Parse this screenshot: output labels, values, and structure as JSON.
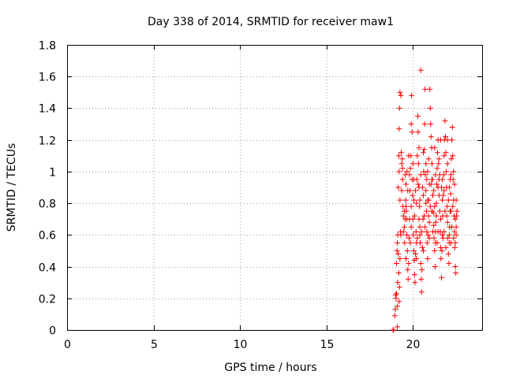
{
  "chart_data": {
    "type": "scatter",
    "title": "Day 338 of 2014, SRMTID for receiver maw1",
    "xlabel": "GPS time / hours",
    "ylabel": "SRMTID / TECUs",
    "xlim": [
      0,
      24
    ],
    "ylim": [
      0,
      1.8
    ],
    "x_ticks": [
      0,
      5,
      10,
      15,
      20
    ],
    "x_tick_labels": [
      "0",
      "5",
      "10",
      "15",
      "20"
    ],
    "y_ticks": [
      0,
      0.2,
      0.4,
      0.6,
      0.8,
      1.0,
      1.2,
      1.4,
      1.6,
      1.8
    ],
    "y_tick_labels": [
      "0",
      "0.2",
      "0.4",
      "0.6",
      "0.8",
      "1",
      "1.2",
      "1.4",
      "1.6",
      "1.8"
    ],
    "grid": true,
    "marker": "plus",
    "color": "#ff0000",
    "series": [
      {
        "name": "maw1",
        "points": [
          [
            18.85,
            0.0
          ],
          [
            18.88,
            0.0
          ],
          [
            18.95,
            0.09
          ],
          [
            18.98,
            0.13
          ],
          [
            19.0,
            0.22
          ],
          [
            19.02,
            0.2
          ],
          [
            19.05,
            0.23
          ],
          [
            19.1,
            0.02
          ],
          [
            19.1,
            0.15
          ],
          [
            19.12,
            0.3
          ],
          [
            19.05,
            0.42
          ],
          [
            19.08,
            0.5
          ],
          [
            19.1,
            0.55
          ],
          [
            19.12,
            0.6
          ],
          [
            19.15,
            0.48
          ],
          [
            19.18,
            0.36
          ],
          [
            19.2,
            0.18
          ],
          [
            19.22,
            0.27
          ],
          [
            19.25,
            0.45
          ],
          [
            19.28,
            0.62
          ],
          [
            19.15,
            0.9
          ],
          [
            19.18,
            1.1
          ],
          [
            19.2,
            1.27
          ],
          [
            19.22,
            1.4
          ],
          [
            19.25,
            1.5
          ],
          [
            19.3,
            1.48
          ],
          [
            19.32,
            1.12
          ],
          [
            19.35,
            1.05
          ],
          [
            19.38,
            1.08
          ],
          [
            19.4,
            0.95
          ],
          [
            19.42,
            0.78
          ],
          [
            19.45,
            0.72
          ],
          [
            19.5,
            0.65
          ],
          [
            19.52,
            0.55
          ],
          [
            19.55,
            0.7
          ],
          [
            19.58,
            0.82
          ],
          [
            19.6,
            0.92
          ],
          [
            19.62,
            0.75
          ],
          [
            19.65,
            0.6
          ],
          [
            19.68,
            0.5
          ],
          [
            19.7,
            0.38
          ],
          [
            19.72,
            0.32
          ],
          [
            19.75,
            0.42
          ],
          [
            19.78,
            0.58
          ],
          [
            19.8,
            0.7
          ],
          [
            19.82,
            0.88
          ],
          [
            19.85,
            1.02
          ],
          [
            19.88,
            1.1
          ],
          [
            19.9,
            1.3
          ],
          [
            19.92,
            1.48
          ],
          [
            19.95,
            0.95
          ],
          [
            19.98,
            0.85
          ],
          [
            20.0,
            0.7
          ],
          [
            20.02,
            0.6
          ],
          [
            20.05,
            0.5
          ],
          [
            20.08,
            0.44
          ],
          [
            20.1,
            0.35
          ],
          [
            20.12,
            0.3
          ],
          [
            20.15,
            0.48
          ],
          [
            20.18,
            0.62
          ],
          [
            20.2,
            0.8
          ],
          [
            20.22,
            0.95
          ],
          [
            20.25,
            1.1
          ],
          [
            20.28,
            1.35
          ],
          [
            20.3,
            1.25
          ],
          [
            20.32,
            1.05
          ],
          [
            20.35,
            0.9
          ],
          [
            20.38,
            0.78
          ],
          [
            20.4,
            0.65
          ],
          [
            20.42,
            0.55
          ],
          [
            20.45,
            0.42
          ],
          [
            20.48,
            0.32
          ],
          [
            20.5,
            0.24
          ],
          [
            20.52,
            0.38
          ],
          [
            20.55,
            0.52
          ],
          [
            20.58,
            0.7
          ],
          [
            20.6,
            0.85
          ],
          [
            20.62,
            1.0
          ],
          [
            20.65,
            1.14
          ],
          [
            20.68,
            1.3
          ],
          [
            20.45,
            1.64
          ],
          [
            20.7,
            1.52
          ],
          [
            20.72,
            0.98
          ],
          [
            20.75,
            0.88
          ],
          [
            20.78,
            0.75
          ],
          [
            20.8,
            0.62
          ],
          [
            20.82,
            0.55
          ],
          [
            20.85,
            0.45
          ],
          [
            20.88,
            0.6
          ],
          [
            20.9,
            0.72
          ],
          [
            20.92,
            0.82
          ],
          [
            20.95,
            0.92
          ],
          [
            20.98,
            1.52
          ],
          [
            21.0,
            1.4
          ],
          [
            21.02,
            1.3
          ],
          [
            21.05,
            1.22
          ],
          [
            21.08,
            1.15
          ],
          [
            21.1,
            1.05
          ],
          [
            21.12,
            0.95
          ],
          [
            21.15,
            0.85
          ],
          [
            21.18,
            0.74
          ],
          [
            21.2,
            0.66
          ],
          [
            21.22,
            0.58
          ],
          [
            21.25,
            0.5
          ],
          [
            21.28,
            0.4
          ],
          [
            21.3,
            0.55
          ],
          [
            21.32,
            0.68
          ],
          [
            21.35,
            0.8
          ],
          [
            21.38,
            0.92
          ],
          [
            21.4,
            1.02
          ],
          [
            21.42,
            1.12
          ],
          [
            21.45,
            1.2
          ],
          [
            21.48,
            1.05
          ],
          [
            21.5,
            0.95
          ],
          [
            21.52,
            0.85
          ],
          [
            21.55,
            0.75
          ],
          [
            21.58,
            0.62
          ],
          [
            21.6,
            0.52
          ],
          [
            21.62,
            0.45
          ],
          [
            21.65,
            0.33
          ],
          [
            21.68,
            0.5
          ],
          [
            21.7,
            0.6
          ],
          [
            21.72,
            0.72
          ],
          [
            21.75,
            0.85
          ],
          [
            21.78,
            0.98
          ],
          [
            21.8,
            1.1
          ],
          [
            21.82,
            1.2
          ],
          [
            21.85,
            1.32
          ],
          [
            21.88,
            1.22
          ],
          [
            21.9,
            1.12
          ],
          [
            21.92,
            1.0
          ],
          [
            21.95,
            0.9
          ],
          [
            21.98,
            0.78
          ],
          [
            22.0,
            0.68
          ],
          [
            22.02,
            0.58
          ],
          [
            22.05,
            0.48
          ],
          [
            22.08,
            0.42
          ],
          [
            22.1,
            0.55
          ],
          [
            22.12,
            0.65
          ],
          [
            22.15,
            0.75
          ],
          [
            22.18,
            0.86
          ],
          [
            22.2,
            0.98
          ],
          [
            22.22,
            1.08
          ],
          [
            22.25,
            1.2
          ],
          [
            22.28,
            1.28
          ],
          [
            22.3,
            1.1
          ],
          [
            22.32,
            0.95
          ],
          [
            22.35,
            0.82
          ],
          [
            22.38,
            0.72
          ],
          [
            22.4,
            0.62
          ],
          [
            22.42,
            0.52
          ],
          [
            22.45,
            0.4
          ],
          [
            22.48,
            0.36
          ],
          [
            22.5,
            0.6
          ],
          [
            22.52,
            0.72
          ],
          [
            19.35,
            0.88
          ],
          [
            19.55,
            0.98
          ],
          [
            19.75,
            1.1
          ],
          [
            19.95,
            1.25
          ],
          [
            20.15,
            0.88
          ],
          [
            20.35,
            0.7
          ],
          [
            20.55,
            0.9
          ],
          [
            20.75,
            1.05
          ],
          [
            20.95,
            0.58
          ],
          [
            21.15,
            0.62
          ],
          [
            21.35,
            0.72
          ],
          [
            21.55,
            0.98
          ],
          [
            21.75,
            0.58
          ],
          [
            21.95,
            0.72
          ],
          [
            22.15,
            0.95
          ],
          [
            22.35,
            0.58
          ],
          [
            19.45,
            0.62
          ],
          [
            19.65,
            0.7
          ],
          [
            19.85,
            0.55
          ],
          [
            20.05,
            0.82
          ],
          [
            20.25,
            0.58
          ],
          [
            20.45,
            0.98
          ],
          [
            20.65,
            0.72
          ],
          [
            20.85,
            0.82
          ],
          [
            21.05,
            0.92
          ],
          [
            21.25,
            0.78
          ],
          [
            21.45,
            0.62
          ],
          [
            21.65,
            0.9
          ],
          [
            21.85,
            0.75
          ],
          [
            22.05,
            0.82
          ],
          [
            22.25,
            0.65
          ],
          [
            22.45,
            0.7
          ],
          [
            19.25,
            0.82
          ],
          [
            19.6,
            0.78
          ],
          [
            19.9,
            0.65
          ],
          [
            20.2,
            0.45
          ],
          [
            20.5,
            0.62
          ],
          [
            20.8,
            0.95
          ],
          [
            21.1,
            0.75
          ],
          [
            21.4,
            0.55
          ],
          [
            21.7,
            0.95
          ],
          [
            22.0,
            1.05
          ],
          [
            22.3,
            0.78
          ],
          [
            19.4,
            1.02
          ],
          [
            19.7,
            0.88
          ],
          [
            20.0,
            1.05
          ],
          [
            20.3,
            0.92
          ],
          [
            20.6,
            0.5
          ],
          [
            20.9,
            1.08
          ],
          [
            21.2,
            0.88
          ],
          [
            21.5,
            1.08
          ],
          [
            21.8,
            0.62
          ],
          [
            22.1,
            0.9
          ],
          [
            22.4,
            0.92
          ],
          [
            19.3,
            0.6
          ],
          [
            19.6,
            0.45
          ],
          [
            20.1,
            0.72
          ],
          [
            20.4,
            0.82
          ],
          [
            20.7,
            0.65
          ],
          [
            21.0,
            0.78
          ],
          [
            21.3,
            0.98
          ],
          [
            21.6,
            0.7
          ],
          [
            21.9,
            0.52
          ],
          [
            22.2,
            0.75
          ],
          [
            22.5,
            0.82
          ],
          [
            19.5,
            0.75
          ],
          [
            19.8,
            0.98
          ],
          [
            20.2,
            0.55
          ],
          [
            20.6,
            1.12
          ],
          [
            20.95,
            0.68
          ],
          [
            21.3,
            0.62
          ],
          [
            21.7,
            0.82
          ],
          [
            22.1,
            0.6
          ],
          [
            22.45,
            0.55
          ],
          [
            19.65,
            1.0
          ],
          [
            20.05,
            0.95
          ],
          [
            20.4,
            0.6
          ],
          [
            20.75,
            0.8
          ],
          [
            21.1,
            0.95
          ],
          [
            21.45,
            0.9
          ],
          [
            21.8,
            0.88
          ],
          [
            22.2,
            0.55
          ],
          [
            22.5,
            0.65
          ],
          [
            19.2,
            1.0
          ],
          [
            19.9,
            0.78
          ],
          [
            20.35,
            1.15
          ],
          [
            20.85,
            1.0
          ],
          [
            21.25,
            1.15
          ],
          [
            21.6,
            1.2
          ],
          [
            22.0,
            1.2
          ],
          [
            22.35,
            1.0
          ],
          [
            22.55,
            0.75
          ]
        ]
      }
    ]
  }
}
